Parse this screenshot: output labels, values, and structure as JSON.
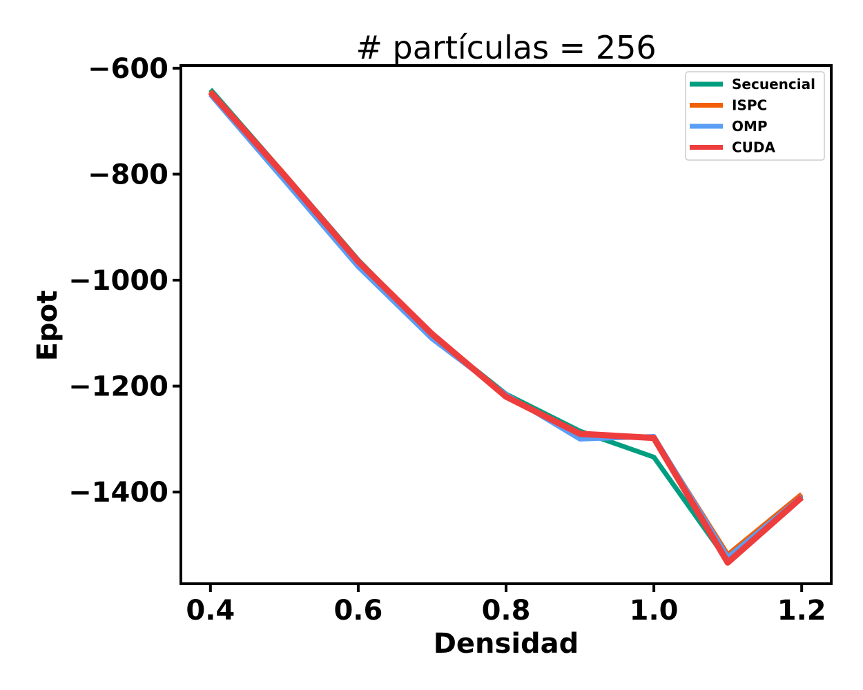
{
  "chart_data": {
    "type": "line",
    "title": "# partículas = 256",
    "xlabel": "Densidad",
    "ylabel": "Epot",
    "xlim": [
      0.36,
      1.24
    ],
    "ylim": [
      -1573,
      -595
    ],
    "xticks": [
      0.4,
      0.6,
      0.8,
      1.0,
      1.2
    ],
    "xtick_labels": [
      "0.4",
      "0.6",
      "0.8",
      "1.0",
      "1.2"
    ],
    "yticks": [
      -600,
      -800,
      -1000,
      -1200,
      -1400
    ],
    "ytick_labels": [
      "−600",
      "−800",
      "−1000",
      "−1200",
      "−1400"
    ],
    "grid": false,
    "legend_position": "top-right",
    "x": [
      0.4,
      0.5,
      0.6,
      0.7,
      0.8,
      0.9,
      1.0,
      1.1,
      1.2
    ],
    "series": [
      {
        "name": "Secuencial",
        "color": "#009E80",
        "values": [
          -640,
          -800,
          -962,
          -1104,
          -1215,
          -1285,
          -1334,
          -1530,
          -1406
        ]
      },
      {
        "name": "ISPC",
        "color": "#F25E05",
        "values": [
          -643,
          -800,
          -966,
          -1102,
          -1218,
          -1290,
          -1297,
          -1518,
          -1404
        ]
      },
      {
        "name": "OMP",
        "color": "#5A9EF5",
        "values": [
          -650,
          -812,
          -975,
          -1111,
          -1216,
          -1300,
          -1295,
          -1523,
          -1408
        ]
      },
      {
        "name": "CUDA",
        "color": "#EE3D3D",
        "values": [
          -645,
          -802,
          -965,
          -1102,
          -1220,
          -1290,
          -1298,
          -1533,
          -1410
        ]
      }
    ]
  }
}
